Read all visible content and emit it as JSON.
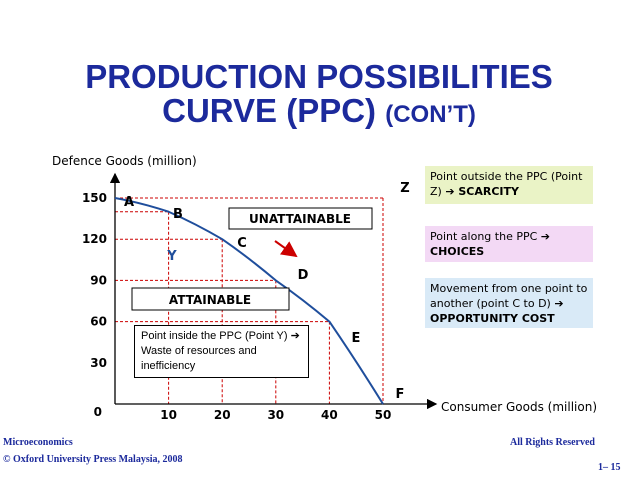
{
  "slide": {
    "title_line1": "PRODUCTION POSSIBILITIES",
    "title_line2_main": "CURVE (PPC)",
    "title_line2_suffix": "(CON’T)"
  },
  "chart_data": {
    "type": "line",
    "ylabel": "Defence Goods (million)",
    "xlabel": "Consumer Goods (million)",
    "x_ticks": [
      "10",
      "20",
      "30",
      "40",
      "50"
    ],
    "y_ticks": [
      "0",
      "30",
      "60",
      "90",
      "120",
      "150"
    ],
    "xlim": [
      0,
      50
    ],
    "ylim": [
      0,
      150
    ],
    "series": [
      {
        "points": [
          {
            "label": "A",
            "x": 0,
            "y": 150
          },
          {
            "label": "B",
            "x": 10,
            "y": 140
          },
          {
            "label": "C",
            "x": 20,
            "y": 120
          },
          {
            "label": "D",
            "x": 30,
            "y": 90
          },
          {
            "label": "E",
            "x": 40,
            "y": 60
          },
          {
            "label": "F",
            "x": 50,
            "y": 0
          }
        ]
      }
    ],
    "special_points": [
      {
        "label": "Y",
        "x": 10,
        "y": 120
      },
      {
        "label": "Z",
        "x": 50,
        "y": 150
      }
    ],
    "movement": {
      "from": "C",
      "to": "D"
    },
    "region_labels": {
      "unattainable": "UNATTAINABLE",
      "attainable": "ATTAINABLE"
    },
    "inside_note": "Point inside the PPC (Point Y) ➔ Waste of resources and inefficiency",
    "colors": {
      "curve": "#1f4e9c",
      "guides": "#cc0000",
      "arrow": "#cc0000"
    }
  },
  "side_notes": [
    {
      "text": "Point outside the PPC (Point Z)",
      "emph": "➔ SCARCITY",
      "bg": "#eaf3c6"
    },
    {
      "text": "Point along the PPC ➔",
      "emph": "CHOICES",
      "bg": "#f3d9f5"
    },
    {
      "text": "Movement from one point to another (point C to D)",
      "emph": "➔ OPPORTUNITY COST",
      "bg": "#d9eaf7"
    }
  ],
  "footer": {
    "left_line1": "Microeconomics",
    "left_line2": "© Oxford University Press Malaysia, 2008",
    "right_line1": "All Rights Reserved",
    "right_line2": "1– 15"
  }
}
